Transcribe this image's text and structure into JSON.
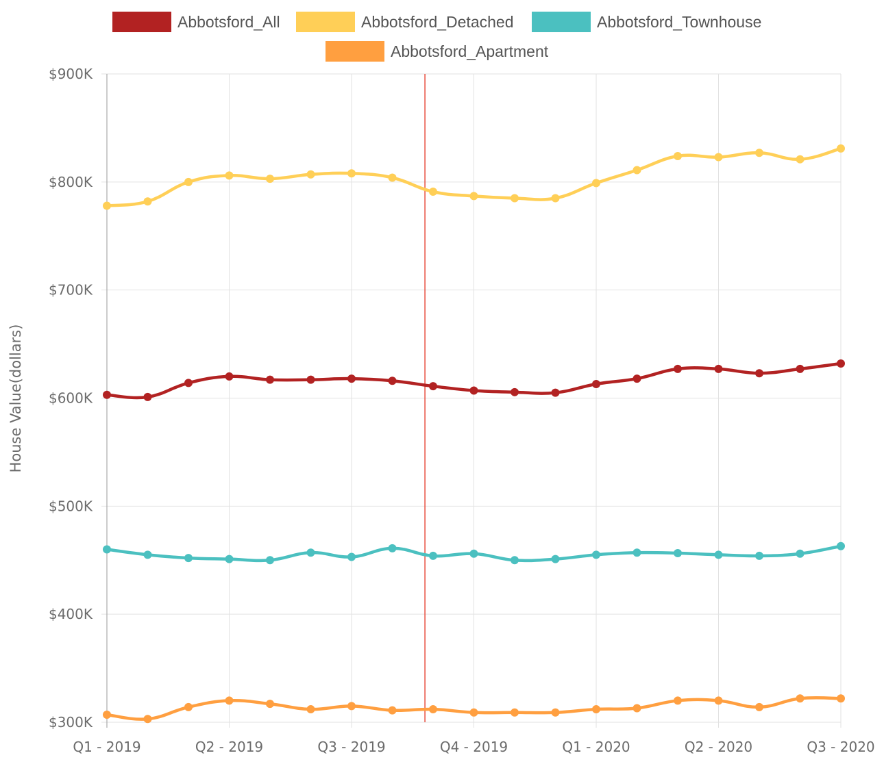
{
  "chart_data": {
    "type": "line",
    "title": "",
    "xlabel": "",
    "ylabel": "House Value(dollars)",
    "ylim": [
      300000,
      900000
    ],
    "y_ticks": [
      "$300K",
      "$400K",
      "$500K",
      "$600K",
      "$700K",
      "$800K",
      "$900K"
    ],
    "y_tick_values": [
      300000,
      400000,
      500000,
      600000,
      700000,
      800000,
      900000
    ],
    "x_tick_labels": [
      "Q1 - 2019",
      "Q2 - 2019",
      "Q3 - 2019",
      "Q4 - 2019",
      "Q1 - 2020",
      "Q2 - 2020",
      "Q3 - 2020"
    ],
    "x_points": 19,
    "marker_index": 7.8,
    "marker_color": "#e74c3c",
    "grid": true,
    "legend_position": "top-center",
    "series": [
      {
        "name": "Abbotsford_All",
        "color": "#b22222",
        "values": [
          603000,
          601000,
          614000,
          620000,
          617000,
          617000,
          618000,
          616000,
          611000,
          607000,
          605500,
          605000,
          613000,
          618000,
          627000,
          627000,
          623000,
          627000,
          632000
        ]
      },
      {
        "name": "Abbotsford_Detached",
        "color": "#ffcf57",
        "values": [
          778000,
          782000,
          800000,
          806000,
          803000,
          807000,
          808000,
          804000,
          791000,
          787000,
          785000,
          785000,
          799000,
          811000,
          824000,
          823000,
          827000,
          821000,
          831000
        ]
      },
      {
        "name": "Abbotsford_Townhouse",
        "color": "#4bc0c0",
        "values": [
          460000,
          455000,
          452000,
          451000,
          450000,
          457000,
          453000,
          461000,
          454000,
          456000,
          450000,
          451000,
          455000,
          457000,
          456500,
          455000,
          454000,
          456000,
          463000
        ]
      },
      {
        "name": "Abbotsford_Apartment",
        "color": "#ff9f40",
        "values": [
          307000,
          303000,
          314000,
          320000,
          317000,
          312000,
          315000,
          311000,
          312000,
          309000,
          309000,
          309000,
          312000,
          313000,
          320000,
          320000,
          314000,
          322000,
          322000
        ]
      }
    ]
  }
}
